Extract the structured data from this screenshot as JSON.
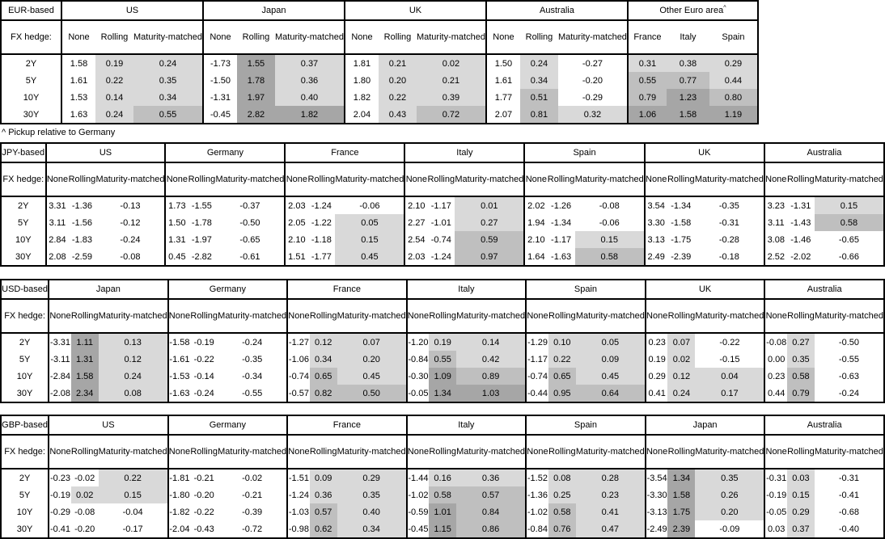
{
  "footnote": "^ Pickup relative to Germany",
  "hedge_label": "FX hedge:",
  "row_labels": [
    "2Y",
    "5Y",
    "10Y",
    "30Y"
  ],
  "hedge_columns": [
    "None",
    "Rolling",
    "Maturity-matched"
  ],
  "shading": {
    "negative_bg": "#ffffff",
    "low_bg": "#d9d9d9",
    "mid_bg": "#bfbfbf",
    "high_bg": "#a6a6a6",
    "low_range": "0 to 0.5",
    "mid_range": "0.5 to 1.0",
    "high_range": "1.0 and above",
    "note": "None columns are never shaded"
  },
  "tables": [
    {
      "base": "EUR-based",
      "groups": [
        {
          "name": "US",
          "kind": "hedge",
          "rows": [
            [
              "1.58",
              "0.19",
              "0.24"
            ],
            [
              "1.61",
              "0.22",
              "0.35"
            ],
            [
              "1.53",
              "0.14",
              "0.34"
            ],
            [
              "1.63",
              "0.24",
              "0.55"
            ]
          ]
        },
        {
          "name": "Japan",
          "kind": "hedge",
          "rows": [
            [
              "-1.73",
              "1.55",
              "0.37"
            ],
            [
              "-1.50",
              "1.78",
              "0.36"
            ],
            [
              "-1.31",
              "1.97",
              "0.40"
            ],
            [
              "-0.45",
              "2.82",
              "1.82"
            ]
          ]
        },
        {
          "name": "UK",
          "kind": "hedge",
          "rows": [
            [
              "1.81",
              "0.21",
              "0.02"
            ],
            [
              "1.80",
              "0.20",
              "0.21"
            ],
            [
              "1.82",
              "0.22",
              "0.39"
            ],
            [
              "2.04",
              "0.43",
              "0.72"
            ]
          ]
        },
        {
          "name": "Australia",
          "kind": "hedge",
          "rows": [
            [
              "1.50",
              "0.24",
              "-0.27"
            ],
            [
              "1.61",
              "0.34",
              "-0.20"
            ],
            [
              "1.77",
              "0.51",
              "-0.29"
            ],
            [
              "2.07",
              "0.81",
              "0.32"
            ]
          ]
        },
        {
          "name": "Other Euro area",
          "superscript": "^",
          "kind": "plain",
          "columns": [
            "France",
            "Italy",
            "Spain"
          ],
          "rows": [
            [
              "0.31",
              "0.38",
              "0.29"
            ],
            [
              "0.55",
              "0.77",
              "0.44"
            ],
            [
              "0.79",
              "1.23",
              "0.80"
            ],
            [
              "1.06",
              "1.58",
              "1.19"
            ]
          ]
        }
      ]
    },
    {
      "base": "JPY-based",
      "groups": [
        {
          "name": "US",
          "kind": "hedge",
          "rows": [
            [
              "3.31",
              "-1.36",
              "-0.13"
            ],
            [
              "3.11",
              "-1.56",
              "-0.12"
            ],
            [
              "2.84",
              "-1.83",
              "-0.24"
            ],
            [
              "2.08",
              "-2.59",
              "-0.08"
            ]
          ]
        },
        {
          "name": "Germany",
          "kind": "hedge",
          "rows": [
            [
              "1.73",
              "-1.55",
              "-0.37"
            ],
            [
              "1.50",
              "-1.78",
              "-0.50"
            ],
            [
              "1.31",
              "-1.97",
              "-0.65"
            ],
            [
              "0.45",
              "-2.82",
              "-0.61"
            ]
          ]
        },
        {
          "name": "France",
          "kind": "hedge",
          "rows": [
            [
              "2.03",
              "-1.24",
              "-0.06"
            ],
            [
              "2.05",
              "-1.22",
              "0.05"
            ],
            [
              "2.10",
              "-1.18",
              "0.15"
            ],
            [
              "1.51",
              "-1.77",
              "0.45"
            ]
          ]
        },
        {
          "name": "Italy",
          "kind": "hedge",
          "rows": [
            [
              "2.10",
              "-1.17",
              "0.01"
            ],
            [
              "2.27",
              "-1.01",
              "0.27"
            ],
            [
              "2.54",
              "-0.74",
              "0.59"
            ],
            [
              "2.03",
              "-1.24",
              "0.97"
            ]
          ]
        },
        {
          "name": "Spain",
          "kind": "hedge",
          "rows": [
            [
              "2.02",
              "-1.26",
              "-0.08"
            ],
            [
              "1.94",
              "-1.34",
              "-0.06"
            ],
            [
              "2.10",
              "-1.17",
              "0.15"
            ],
            [
              "1.64",
              "-1.63",
              "0.58"
            ]
          ]
        },
        {
          "name": "UK",
          "kind": "hedge",
          "rows": [
            [
              "3.54",
              "-1.34",
              "-0.35"
            ],
            [
              "3.30",
              "-1.58",
              "-0.31"
            ],
            [
              "3.13",
              "-1.75",
              "-0.28"
            ],
            [
              "2.49",
              "-2.39",
              "-0.18"
            ]
          ]
        },
        {
          "name": "Australia",
          "kind": "hedge",
          "rows": [
            [
              "3.23",
              "-1.31",
              "0.15"
            ],
            [
              "3.11",
              "-1.43",
              "0.58"
            ],
            [
              "3.08",
              "-1.46",
              "-0.65"
            ],
            [
              "2.52",
              "-2.02",
              "-0.66"
            ]
          ]
        }
      ]
    },
    {
      "base": "USD-based",
      "groups": [
        {
          "name": "Japan",
          "kind": "hedge",
          "rows": [
            [
              "-3.31",
              "1.11",
              "0.13"
            ],
            [
              "-3.11",
              "1.31",
              "0.12"
            ],
            [
              "-2.84",
              "1.58",
              "0.24"
            ],
            [
              "-2.08",
              "2.34",
              "0.08"
            ]
          ]
        },
        {
          "name": "Germany",
          "kind": "hedge",
          "rows": [
            [
              "-1.58",
              "-0.19",
              "-0.24"
            ],
            [
              "-1.61",
              "-0.22",
              "-0.35"
            ],
            [
              "-1.53",
              "-0.14",
              "-0.34"
            ],
            [
              "-1.63",
              "-0.24",
              "-0.55"
            ]
          ]
        },
        {
          "name": "France",
          "kind": "hedge",
          "rows": [
            [
              "-1.27",
              "0.12",
              "0.07"
            ],
            [
              "-1.06",
              "0.34",
              "0.20"
            ],
            [
              "-0.74",
              "0.65",
              "0.45"
            ],
            [
              "-0.57",
              "0.82",
              "0.50"
            ]
          ]
        },
        {
          "name": "Italy",
          "kind": "hedge",
          "rows": [
            [
              "-1.20",
              "0.19",
              "0.14"
            ],
            [
              "-0.84",
              "0.55",
              "0.42"
            ],
            [
              "-0.30",
              "1.09",
              "0.89"
            ],
            [
              "-0.05",
              "1.34",
              "1.03"
            ]
          ]
        },
        {
          "name": "Spain",
          "kind": "hedge",
          "rows": [
            [
              "-1.29",
              "0.10",
              "0.05"
            ],
            [
              "-1.17",
              "0.22",
              "0.09"
            ],
            [
              "-0.74",
              "0.65",
              "0.45"
            ],
            [
              "-0.44",
              "0.95",
              "0.64"
            ]
          ]
        },
        {
          "name": "UK",
          "kind": "hedge",
          "rows": [
            [
              "0.23",
              "0.07",
              "-0.22"
            ],
            [
              "0.19",
              "0.02",
              "-0.15"
            ],
            [
              "0.29",
              "0.12",
              "0.04"
            ],
            [
              "0.41",
              "0.24",
              "0.17"
            ]
          ]
        },
        {
          "name": "Australia",
          "kind": "hedge",
          "rows": [
            [
              "-0.08",
              "0.27",
              "-0.50"
            ],
            [
              "0.00",
              "0.35",
              "-0.55"
            ],
            [
              "0.23",
              "0.58",
              "-0.63"
            ],
            [
              "0.44",
              "0.79",
              "-0.24"
            ]
          ]
        }
      ]
    },
    {
      "base": "GBP-based",
      "groups": [
        {
          "name": "US",
          "kind": "hedge",
          "rows": [
            [
              "-0.23",
              "-0.02",
              "0.22"
            ],
            [
              "-0.19",
              "0.02",
              "0.15"
            ],
            [
              "-0.29",
              "-0.08",
              "-0.04"
            ],
            [
              "-0.41",
              "-0.20",
              "-0.17"
            ]
          ]
        },
        {
          "name": "Germany",
          "kind": "hedge",
          "rows": [
            [
              "-1.81",
              "-0.21",
              "-0.02"
            ],
            [
              "-1.80",
              "-0.20",
              "-0.21"
            ],
            [
              "-1.82",
              "-0.22",
              "-0.39"
            ],
            [
              "-2.04",
              "-0.43",
              "-0.72"
            ]
          ]
        },
        {
          "name": "France",
          "kind": "hedge",
          "rows": [
            [
              "-1.51",
              "0.09",
              "0.29"
            ],
            [
              "-1.24",
              "0.36",
              "0.35"
            ],
            [
              "-1.03",
              "0.57",
              "0.40"
            ],
            [
              "-0.98",
              "0.62",
              "0.34"
            ]
          ]
        },
        {
          "name": "Italy",
          "kind": "hedge",
          "rows": [
            [
              "-1.44",
              "0.16",
              "0.36"
            ],
            [
              "-1.02",
              "0.58",
              "0.57"
            ],
            [
              "-0.59",
              "1.01",
              "0.84"
            ],
            [
              "-0.45",
              "1.15",
              "0.86"
            ]
          ]
        },
        {
          "name": "Spain",
          "kind": "hedge",
          "rows": [
            [
              "-1.52",
              "0.08",
              "0.28"
            ],
            [
              "-1.36",
              "0.25",
              "0.23"
            ],
            [
              "-1.02",
              "0.58",
              "0.41"
            ],
            [
              "-0.84",
              "0.76",
              "0.47"
            ]
          ]
        },
        {
          "name": "Japan",
          "kind": "hedge",
          "rows": [
            [
              "-3.54",
              "1.34",
              "0.35"
            ],
            [
              "-3.30",
              "1.58",
              "0.26"
            ],
            [
              "-3.13",
              "1.75",
              "0.20"
            ],
            [
              "-2.49",
              "2.39",
              "-0.09"
            ]
          ]
        },
        {
          "name": "Australia",
          "kind": "hedge",
          "rows": [
            [
              "-0.31",
              "0.03",
              "-0.31"
            ],
            [
              "-0.19",
              "0.15",
              "-0.41"
            ],
            [
              "-0.05",
              "0.29",
              "-0.68"
            ],
            [
              "0.03",
              "0.37",
              "-0.40"
            ]
          ]
        }
      ]
    }
  ]
}
